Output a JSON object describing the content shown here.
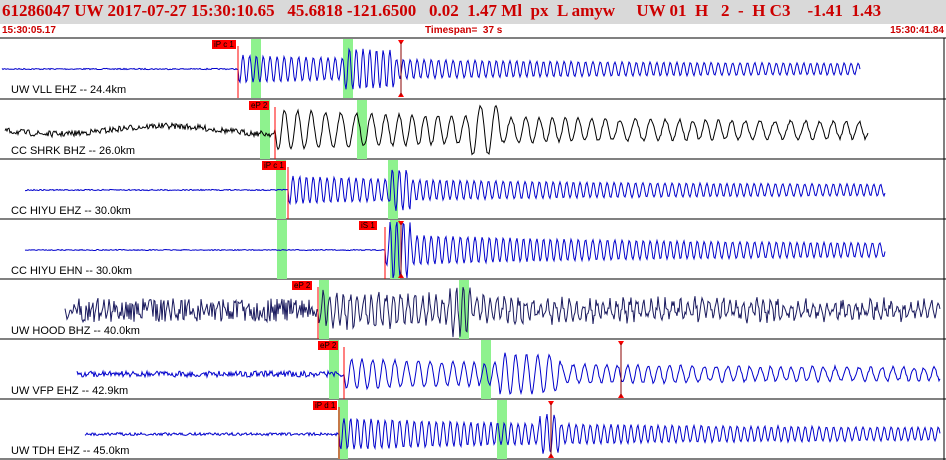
{
  "header": {
    "title": "61286047 UW 2017-07-27 15:30:10.65   45.6818 -121.6500   0.02  1.47 Ml  px  L amyw     UW 01  H   2  -  H C3    -1.41  1.43",
    "start_time": "15:30:05.17",
    "timespan": "Timespan=  37 s",
    "end_time": "15:30:41.84"
  },
  "colors": {
    "header_bg": "#d9d9d9",
    "header_text": "#cc0000",
    "blue_trace": "#0000cc",
    "black_trace": "#000000",
    "navy_trace": "#1a1a5e",
    "pick": "#ff0000",
    "window": "#8ef28e"
  },
  "channels": [
    {
      "label": "UW VLL EHZ -- 24.4km",
      "pick": "iP c 1",
      "color": "blue"
    },
    {
      "label": "CC SHRK BHZ -- 26.0km",
      "pick": "eP 2",
      "color": "black"
    },
    {
      "label": "CC HIYU EHZ -- 30.0km",
      "pick": "iP c 1",
      "color": "blue"
    },
    {
      "label": "CC HIYU EHN -- 30.0km",
      "pick": "iS 1",
      "color": "blue"
    },
    {
      "label": "UW HOOD BHZ -- 40.0km",
      "pick": "eP 2",
      "color": "navy"
    },
    {
      "label": "UW VFP EHZ -- 42.9km",
      "pick": "eP 2",
      "color": "blue"
    },
    {
      "label": "UW TDH EHZ -- 45.0km",
      "pick": "iP d 1",
      "color": "blue"
    }
  ]
}
